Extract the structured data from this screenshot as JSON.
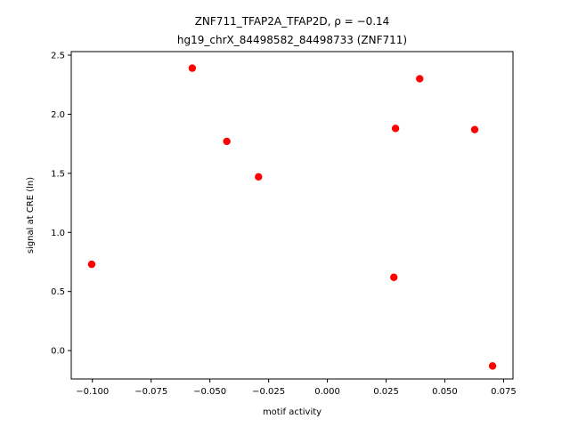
{
  "chart_data": {
    "type": "scatter",
    "title_line1": "ZNF711_TFAP2A_TFAP2D, ρ = −0.14",
    "title_line2": "hg19_chrX_84498582_84498733 (ZNF711)",
    "xlabel": "motif activity",
    "ylabel": "signal at CRE (ln)",
    "xlim": [
      -0.109,
      0.079
    ],
    "ylim": [
      -0.24,
      2.53
    ],
    "xticks": [
      -0.1,
      -0.075,
      -0.05,
      -0.025,
      0.0,
      0.025,
      0.05,
      0.075
    ],
    "xtick_labels": [
      "−0.100",
      "−0.075",
      "−0.050",
      "−0.025",
      "0.000",
      "0.025",
      "0.050",
      "0.075"
    ],
    "yticks": [
      0.0,
      0.5,
      1.0,
      1.5,
      2.0,
      2.5
    ],
    "ytick_labels": [
      "0.0",
      "0.5",
      "1.0",
      "1.5",
      "2.0",
      "2.5"
    ],
    "marker_color": "#ff0000",
    "grid": false,
    "points": [
      {
        "x": -0.1003,
        "y": 0.73
      },
      {
        "x": -0.0575,
        "y": 2.39
      },
      {
        "x": -0.0428,
        "y": 1.77
      },
      {
        "x": -0.0293,
        "y": 1.47
      },
      {
        "x": 0.0283,
        "y": 0.62
      },
      {
        "x": 0.029,
        "y": 1.88
      },
      {
        "x": 0.0393,
        "y": 2.3
      },
      {
        "x": 0.0627,
        "y": 1.87
      },
      {
        "x": 0.0703,
        "y": -0.13
      }
    ]
  }
}
